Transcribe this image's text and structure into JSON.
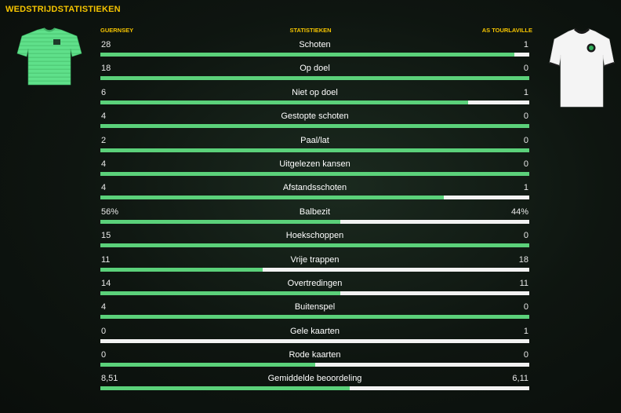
{
  "panel": {
    "title": "WEDSTRIJDSTATISTIEKEN"
  },
  "headers": {
    "home": "GUERNSEY",
    "stat": "STATISTIEKEN",
    "away": "AS TOURLAVILLE"
  },
  "colors": {
    "accent": "#f5c400",
    "home_bar": "#5bd17a",
    "away_bar": "#f2f2f2",
    "home_kit": "#5fe08a",
    "away_kit": "#f4f4f4"
  },
  "icons": {
    "home_kit": "home-kit-icon",
    "away_kit": "away-kit-icon"
  },
  "stats": [
    {
      "label": "Schoten",
      "home": "28",
      "away": "1",
      "home_share": 0.966
    },
    {
      "label": "Op doel",
      "home": "18",
      "away": "0",
      "home_share": 1.0
    },
    {
      "label": "Niet op doel",
      "home": "6",
      "away": "1",
      "home_share": 0.857
    },
    {
      "label": "Gestopte schoten",
      "home": "4",
      "away": "0",
      "home_share": 1.0
    },
    {
      "label": "Paal/lat",
      "home": "2",
      "away": "0",
      "home_share": 1.0
    },
    {
      "label": "Uitgelezen kansen",
      "home": "4",
      "away": "0",
      "home_share": 1.0
    },
    {
      "label": "Afstandsschoten",
      "home": "4",
      "away": "1",
      "home_share": 0.8
    },
    {
      "label": "Balbezit",
      "home": "56%",
      "away": "44%",
      "home_share": 0.56
    },
    {
      "label": "Hoekschoppen",
      "home": "15",
      "away": "0",
      "home_share": 1.0
    },
    {
      "label": "Vrije trappen",
      "home": "11",
      "away": "18",
      "home_share": 0.379
    },
    {
      "label": "Overtredingen",
      "home": "14",
      "away": "11",
      "home_share": 0.56
    },
    {
      "label": "Buitenspel",
      "home": "4",
      "away": "0",
      "home_share": 1.0
    },
    {
      "label": "Gele kaarten",
      "home": "0",
      "away": "1",
      "home_share": 0.0
    },
    {
      "label": "Rode kaarten",
      "home": "0",
      "away": "0",
      "home_share": 0.5
    },
    {
      "label": "Gemiddelde beoordeling",
      "home": "8,51",
      "away": "6,11",
      "home_share": 0.582
    }
  ]
}
